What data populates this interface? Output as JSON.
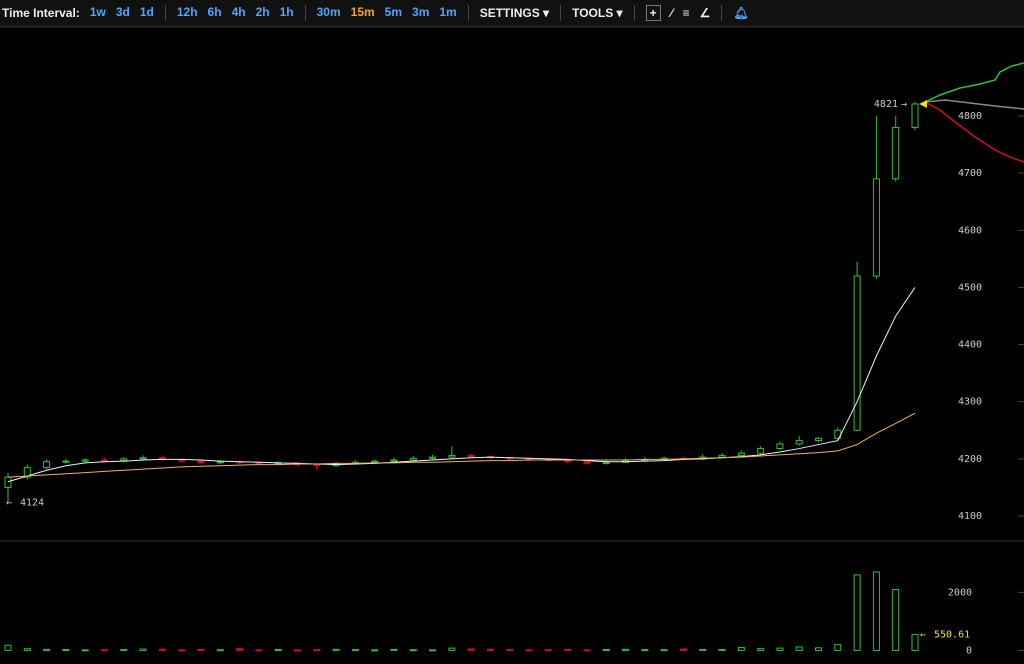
{
  "toolbar": {
    "label": "Time Interval:",
    "intervals": [
      "1w",
      "3d",
      "1d",
      "12h",
      "6h",
      "4h",
      "2h",
      "1h",
      "30m",
      "15m",
      "5m",
      "3m",
      "1m"
    ],
    "active": "15m",
    "settings": "SETTINGS",
    "tools": "TOOLS"
  },
  "chart_data": {
    "type": "candlestick",
    "open": [
      4150,
      4168,
      4185,
      4195,
      4196,
      4198,
      4197,
      4200,
      4202,
      4199,
      4196,
      4193,
      4195,
      4194,
      4192,
      4193,
      4190,
      4188,
      4191,
      4194,
      4196,
      4198,
      4201,
      4203,
      4206,
      4204,
      4202,
      4200,
      4199,
      4198,
      4195,
      4192,
      4194,
      4197,
      4199,
      4201,
      4200,
      4203,
      4206,
      4210,
      4218,
      4226,
      4232,
      4236,
      4250,
      4520,
      4690,
      4780
    ],
    "high": [
      4175,
      4190,
      4199,
      4200,
      4201,
      4202,
      4203,
      4206,
      4205,
      4201,
      4198,
      4198,
      4197,
      4196,
      4196,
      4194,
      4192,
      4195,
      4198,
      4199,
      4202,
      4205,
      4207,
      4222,
      4209,
      4206,
      4204,
      4202,
      4201,
      4199,
      4197,
      4198,
      4201,
      4203,
      4204,
      4204,
      4208,
      4210,
      4215,
      4222,
      4230,
      4240,
      4238,
      4255,
      4545,
      4800,
      4800,
      4825
    ],
    "low": [
      4124,
      4164,
      4182,
      4192,
      4193,
      4194,
      4194,
      4197,
      4197,
      4194,
      4190,
      4191,
      4191,
      4189,
      4190,
      4186,
      4180,
      4186,
      4190,
      4192,
      4194,
      4196,
      4199,
      4201,
      4201,
      4199,
      4197,
      4196,
      4195,
      4192,
      4189,
      4190,
      4193,
      4195,
      4197,
      4197,
      4198,
      4201,
      4204,
      4208,
      4215,
      4223,
      4229,
      4233,
      4248,
      4515,
      4685,
      4775
    ],
    "close": [
      4168,
      4185,
      4195,
      4196,
      4198,
      4197,
      4200,
      4202,
      4199,
      4196,
      4193,
      4195,
      4194,
      4192,
      4193,
      4190,
      4188,
      4191,
      4194,
      4196,
      4198,
      4201,
      4203,
      4206,
      4204,
      4202,
      4200,
      4199,
      4198,
      4195,
      4192,
      4194,
      4197,
      4199,
      4201,
      4200,
      4203,
      4206,
      4210,
      4218,
      4226,
      4232,
      4236,
      4250,
      4520,
      4690,
      4780,
      4821
    ],
    "ma_fast": [
      4160,
      4170,
      4180,
      4188,
      4193,
      4195,
      4196,
      4198,
      4199,
      4199,
      4198,
      4196,
      4195,
      4194,
      4193,
      4192,
      4191,
      4190,
      4191,
      4192,
      4194,
      4196,
      4198,
      4200,
      4202,
      4203,
      4202,
      4201,
      4200,
      4199,
      4197,
      4195,
      4195,
      4196,
      4197,
      4199,
      4200,
      4202,
      4204,
      4207,
      4212,
      4218,
      4225,
      4232,
      4300,
      4380,
      4450,
      4500
    ],
    "ma_slow": [
      4168,
      4170,
      4172,
      4174,
      4176,
      4178,
      4180,
      4182,
      4184,
      4186,
      4187,
      4188,
      4189,
      4190,
      4190,
      4191,
      4191,
      4192,
      4192,
      4193,
      4193,
      4194,
      4194,
      4195,
      4196,
      4197,
      4197,
      4198,
      4198,
      4198,
      4198,
      4198,
      4198,
      4199,
      4199,
      4200,
      4201,
      4202,
      4203,
      4205,
      4207,
      4209,
      4211,
      4214,
      4225,
      4245,
      4262,
      4280
    ],
    "volume": [
      180,
      60,
      40,
      30,
      20,
      25,
      30,
      50,
      40,
      20,
      30,
      25,
      60,
      20,
      30,
      15,
      25,
      40,
      30,
      20,
      35,
      25,
      20,
      80,
      50,
      40,
      30,
      20,
      25,
      35,
      20,
      30,
      40,
      30,
      25,
      50,
      35,
      30,
      100,
      60,
      80,
      120,
      90,
      200,
      2600,
      2700,
      2100,
      550.61
    ],
    "ylim": [
      4058,
      4954
    ],
    "yticks": [
      4100,
      4200,
      4300,
      4400,
      4500,
      4600,
      4700,
      4800
    ],
    "vlim": [
      -467,
      3733
    ],
    "vticks": [
      0,
      2000
    ],
    "last_price": 4821,
    "low_price": 4124,
    "last_volume": 550.61,
    "up_color": "#2fc22f",
    "down_color": "#d0101a",
    "fast_color": "#e8f0ff",
    "slow_color": "#f0b060"
  }
}
